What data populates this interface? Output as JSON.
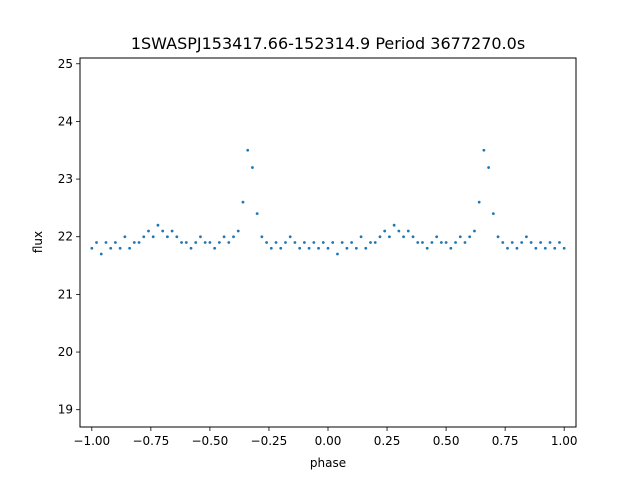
{
  "chart_data": {
    "type": "scatter",
    "title": "1SWASPJ153417.66-152314.9 Period 3677270.0s",
    "xlabel": "phase",
    "ylabel": "flux",
    "xlim": [
      -1.05,
      1.05
    ],
    "ylim": [
      18.7,
      25.1
    ],
    "xticks": [
      -1.0,
      -0.75,
      -0.5,
      -0.25,
      0.0,
      0.25,
      0.5,
      0.75,
      1.0
    ],
    "xtick_labels": [
      "−1.00",
      "−0.75",
      "−0.50",
      "−0.25",
      "0.00",
      "0.25",
      "0.50",
      "0.75",
      "1.00"
    ],
    "yticks": [
      19,
      20,
      21,
      22,
      23,
      24,
      25
    ],
    "ytick_labels": [
      "19",
      "20",
      "21",
      "22",
      "23",
      "24",
      "25"
    ],
    "grid": false,
    "legend": "none",
    "marker_color": "#1f77b4",
    "series": [
      {
        "x": [
          -1.0,
          -0.98,
          -0.96,
          -0.94,
          -0.92,
          -0.9,
          -0.88,
          -0.86,
          -0.84,
          -0.82,
          -0.8,
          -0.78,
          -0.76,
          -0.74,
          -0.72,
          -0.7,
          -0.68,
          -0.66,
          -0.64,
          -0.62,
          -0.6,
          -0.58,
          -0.56,
          -0.54,
          -0.52,
          -0.5,
          -0.48,
          -0.46,
          -0.44,
          -0.42,
          -0.4,
          -0.38,
          -0.36,
          -0.34,
          -0.32,
          -0.3,
          -0.28,
          -0.26,
          -0.24,
          -0.22,
          -0.2,
          -0.18,
          -0.16,
          -0.14,
          -0.12,
          -0.1,
          -0.08,
          -0.06,
          -0.04,
          -0.02,
          0.0,
          0.02,
          0.04,
          0.06,
          0.08,
          0.1,
          0.12,
          0.14,
          0.16,
          0.18,
          0.2,
          0.22,
          0.24,
          0.26,
          0.28,
          0.3,
          0.32,
          0.34,
          0.36,
          0.38,
          0.4,
          0.42,
          0.44,
          0.46,
          0.48,
          0.5,
          0.52,
          0.54,
          0.56,
          0.58,
          0.6,
          0.62,
          0.64,
          0.66,
          0.68,
          0.7,
          0.72,
          0.74,
          0.76,
          0.78,
          0.8,
          0.82,
          0.84,
          0.86,
          0.88,
          0.9,
          0.92,
          0.94,
          0.96,
          0.98,
          1.0
        ],
        "y": [
          21.8,
          21.9,
          21.7,
          21.9,
          21.8,
          21.9,
          21.8,
          22.0,
          21.8,
          21.9,
          21.9,
          22.0,
          22.1,
          22.0,
          22.2,
          22.1,
          22.0,
          22.1,
          22.0,
          21.9,
          21.9,
          21.8,
          21.9,
          22.0,
          21.9,
          21.9,
          21.8,
          21.9,
          22.0,
          21.9,
          22.0,
          22.1,
          22.6,
          23.5,
          23.2,
          22.4,
          22.0,
          21.9,
          21.8,
          21.9,
          21.8,
          21.9,
          22.0,
          21.9,
          21.8,
          21.9,
          21.8,
          21.9,
          21.8,
          21.9,
          21.8,
          21.9,
          21.7,
          21.9,
          21.8,
          21.9,
          21.8,
          22.0,
          21.8,
          21.9,
          21.9,
          22.0,
          22.1,
          22.0,
          22.2,
          22.1,
          22.0,
          22.1,
          22.0,
          21.9,
          21.9,
          21.8,
          21.9,
          22.0,
          21.9,
          21.9,
          21.8,
          21.9,
          22.0,
          21.9,
          22.0,
          22.1,
          22.6,
          23.5,
          23.2,
          22.4,
          22.0,
          21.9,
          21.8,
          21.9,
          21.8,
          21.9,
          22.0,
          21.9,
          21.8,
          21.9,
          21.8,
          21.9,
          21.8,
          21.9,
          21.8
        ]
      }
    ]
  }
}
